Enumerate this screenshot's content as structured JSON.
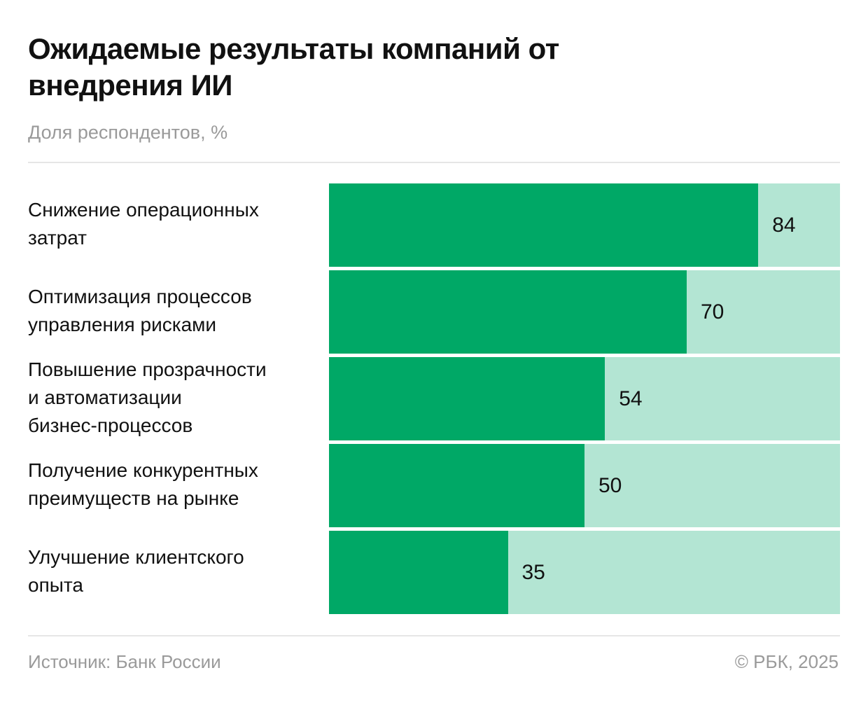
{
  "title": "Ожидаемые результаты компаний от внедрения ИИ",
  "subtitle": "Доля респондентов, %",
  "colors": {
    "bar": "#00a866",
    "track": "#b3e5d3"
  },
  "chart_data": {
    "type": "bar",
    "orientation": "horizontal",
    "title": "Ожидаемые результаты компаний от внедрения ИИ",
    "subtitle": "Доля респондентов, %",
    "categories": [
      "Снижение операционных затрат",
      "Оптимизация процессов управления рисками",
      "Повышение прозрачности и автоматизации бизнес-процессов",
      "Получение конкурентных преимуществ на рынке",
      "Улучшение клиентского опыта"
    ],
    "values": [
      84,
      70,
      54,
      50,
      35
    ],
    "xlim": [
      0,
      100
    ],
    "grid": false
  },
  "footer": {
    "source": "Источник: Банк России",
    "copyright": "© РБК, 2025"
  }
}
